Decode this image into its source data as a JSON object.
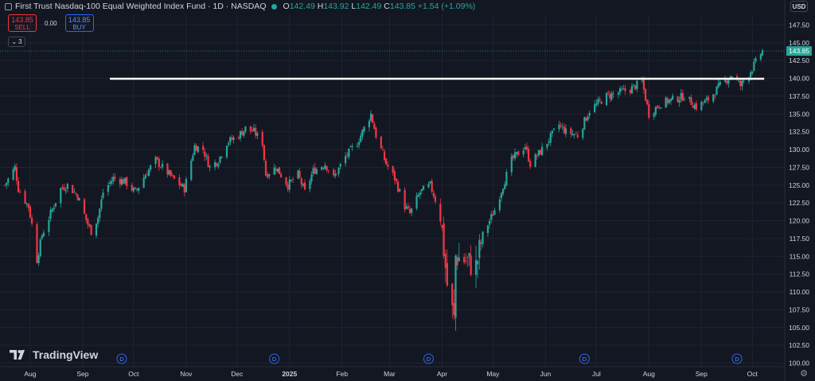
{
  "header": {
    "symbol_title": "First Trust Nasdaq-100 Equal Weighted Index Fund · 1D · NASDAQ",
    "ohlc": [
      {
        "key": "O",
        "value": "142.49"
      },
      {
        "key": "H",
        "value": "143.92"
      },
      {
        "key": "L",
        "value": "142.49"
      },
      {
        "key": "C",
        "value": "143.85"
      }
    ],
    "change": "+1.54 (+1.09%)"
  },
  "trade": {
    "sell_price": "143.85",
    "sell_label": "SELL",
    "spread": "0.00",
    "buy_price": "143.85",
    "buy_label": "BUY"
  },
  "indicators": {
    "collapse_count": "3"
  },
  "currency": "USD",
  "brand": "TradingView",
  "colors": {
    "background": "#131722",
    "up": "#26a69a",
    "down": "#f23645",
    "grid": "#1f2430",
    "text": "#d1d4dc",
    "price_label": "#26a69a",
    "hline": "#ffffff"
  },
  "chart_data": {
    "type": "candlestick",
    "y_axis": {
      "side": "right",
      "ticks": [
        100.0,
        102.5,
        105.0,
        107.5,
        110.0,
        112.5,
        115.0,
        117.5,
        120.0,
        122.5,
        125.0,
        127.5,
        130.0,
        132.5,
        135.0,
        137.5,
        140.0,
        142.5,
        145.0,
        147.5
      ],
      "tick_labels": [
        "100.00",
        "102.50",
        "105.00",
        "107.50",
        "110.00",
        "112.50",
        "115.00",
        "117.50",
        "120.00",
        "122.50",
        "125.00",
        "127.50",
        "130.00",
        "132.50",
        "135.00",
        "137.50",
        "140.00",
        "142.50",
        "145.00",
        "147.50"
      ],
      "range": [
        99.5,
        149.0
      ]
    },
    "x_axis": {
      "labels": [
        "Aug",
        "Sep",
        "Oct",
        "Nov",
        "Dec",
        "2025",
        "Feb",
        "Mar",
        "Apr",
        "May",
        "Jun",
        "Jul",
        "Aug",
        "Sep",
        "Oct"
      ],
      "bold_labels": [
        "2025"
      ],
      "range": [
        "2024-07-17",
        "2025-10-07"
      ]
    },
    "last_price": "143.85",
    "last_price_value": 143.85,
    "horizontal_line": {
      "value": 139.95,
      "from_date": "2024-09-17",
      "to_date": "2025-10-08"
    },
    "dividend_markers": {
      "label": "D",
      "dates": [
        "2024-09-24",
        "2024-12-23",
        "2025-03-24",
        "2025-06-24",
        "2025-09-22"
      ]
    },
    "grid": true,
    "series": [
      {
        "date": "2024-07-17",
        "close": 125.0
      },
      {
        "date": "2024-07-23",
        "close": 127.5
      },
      {
        "date": "2024-07-25",
        "close": 124.5
      },
      {
        "date": "2024-07-31",
        "close": 122.0
      },
      {
        "date": "2024-08-02",
        "close": 119.5
      },
      {
        "date": "2024-08-05",
        "close": 114.5
      },
      {
        "date": "2024-08-08",
        "close": 118.0
      },
      {
        "date": "2024-08-13",
        "close": 121.0
      },
      {
        "date": "2024-08-19",
        "close": 124.5
      },
      {
        "date": "2024-08-23",
        "close": 125.0
      },
      {
        "date": "2024-08-29",
        "close": 123.5
      },
      {
        "date": "2024-09-04",
        "close": 119.5
      },
      {
        "date": "2024-09-06",
        "close": 118.5
      },
      {
        "date": "2024-09-10",
        "close": 120.5
      },
      {
        "date": "2024-09-13",
        "close": 124.0
      },
      {
        "date": "2024-09-19",
        "close": 126.0
      },
      {
        "date": "2024-09-26",
        "close": 125.5
      },
      {
        "date": "2024-10-02",
        "close": 124.0
      },
      {
        "date": "2024-10-08",
        "close": 126.5
      },
      {
        "date": "2024-10-14",
        "close": 128.5
      },
      {
        "date": "2024-10-18",
        "close": 127.5
      },
      {
        "date": "2024-10-24",
        "close": 126.0
      },
      {
        "date": "2024-10-31",
        "close": 124.5
      },
      {
        "date": "2024-11-06",
        "close": 130.5
      },
      {
        "date": "2024-11-11",
        "close": 130.0
      },
      {
        "date": "2024-11-15",
        "close": 127.5
      },
      {
        "date": "2024-11-20",
        "close": 128.5
      },
      {
        "date": "2024-11-25",
        "close": 131.0
      },
      {
        "date": "2024-12-02",
        "close": 132.0
      },
      {
        "date": "2024-12-06",
        "close": 133.0
      },
      {
        "date": "2024-12-11",
        "close": 132.5
      },
      {
        "date": "2024-12-16",
        "close": 131.0
      },
      {
        "date": "2024-12-18",
        "close": 126.5
      },
      {
        "date": "2024-12-24",
        "close": 127.5
      },
      {
        "date": "2024-12-31",
        "close": 125.0
      },
      {
        "date": "2025-01-06",
        "close": 126.5
      },
      {
        "date": "2025-01-10",
        "close": 124.0
      },
      {
        "date": "2025-01-15",
        "close": 127.0
      },
      {
        "date": "2025-01-22",
        "close": 128.0
      },
      {
        "date": "2025-01-27",
        "close": 126.0
      },
      {
        "date": "2025-02-03",
        "close": 129.0
      },
      {
        "date": "2025-02-10",
        "close": 131.0
      },
      {
        "date": "2025-02-18",
        "close": 135.0
      },
      {
        "date": "2025-02-21",
        "close": 132.0
      },
      {
        "date": "2025-02-27",
        "close": 128.0
      },
      {
        "date": "2025-03-04",
        "close": 126.0
      },
      {
        "date": "2025-03-10",
        "close": 122.0
      },
      {
        "date": "2025-03-13",
        "close": 121.0
      },
      {
        "date": "2025-03-19",
        "close": 124.0
      },
      {
        "date": "2025-03-25",
        "close": 125.0
      },
      {
        "date": "2025-03-31",
        "close": 121.0
      },
      {
        "date": "2025-04-04",
        "close": 111.0
      },
      {
        "date": "2025-04-08",
        "close": 106.0
      },
      {
        "date": "2025-04-09",
        "close": 115.0
      },
      {
        "date": "2025-04-14",
        "close": 114.5
      },
      {
        "date": "2025-04-21",
        "close": 113.5
      },
      {
        "date": "2025-04-25",
        "close": 118.0
      },
      {
        "date": "2025-05-02",
        "close": 121.5
      },
      {
        "date": "2025-05-12",
        "close": 128.5
      },
      {
        "date": "2025-05-20",
        "close": 130.5
      },
      {
        "date": "2025-05-23",
        "close": 128.0
      },
      {
        "date": "2025-05-30",
        "close": 130.0
      },
      {
        "date": "2025-06-09",
        "close": 133.5
      },
      {
        "date": "2025-06-13",
        "close": 132.5
      },
      {
        "date": "2025-06-20",
        "close": 132.0
      },
      {
        "date": "2025-06-27",
        "close": 135.5
      },
      {
        "date": "2025-07-07",
        "close": 137.5
      },
      {
        "date": "2025-07-14",
        "close": 138.0
      },
      {
        "date": "2025-07-21",
        "close": 138.5
      },
      {
        "date": "2025-07-28",
        "close": 139.5
      },
      {
        "date": "2025-08-01",
        "close": 135.0
      },
      {
        "date": "2025-08-08",
        "close": 136.5
      },
      {
        "date": "2025-08-15",
        "close": 137.0
      },
      {
        "date": "2025-08-22",
        "close": 137.5
      },
      {
        "date": "2025-08-29",
        "close": 136.0
      },
      {
        "date": "2025-09-05",
        "close": 137.0
      },
      {
        "date": "2025-09-12",
        "close": 139.0
      },
      {
        "date": "2025-09-19",
        "close": 140.5
      },
      {
        "date": "2025-09-24",
        "close": 139.0
      },
      {
        "date": "2025-09-30",
        "close": 141.0
      },
      {
        "date": "2025-10-06",
        "close": 143.5
      },
      {
        "date": "2025-10-07",
        "close": 143.85
      }
    ]
  }
}
